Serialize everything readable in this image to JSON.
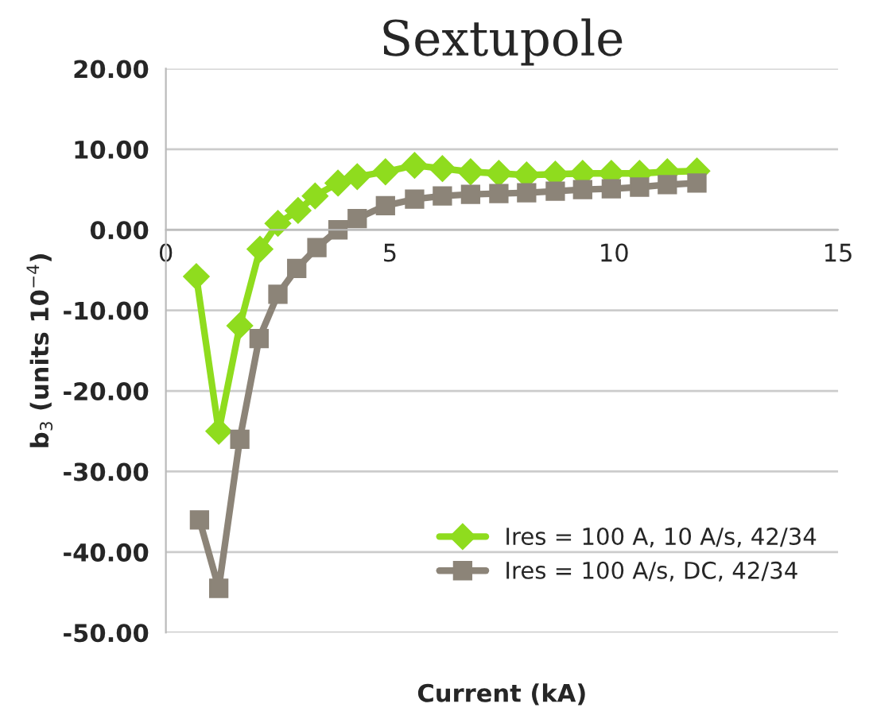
{
  "chart_data": {
    "type": "line",
    "title": "Sextupole",
    "xlabel": "Current (kA)",
    "ylabel": "b$_{3}$ (units 10$^{−4}$)",
    "xlim": [
      0,
      15
    ],
    "xticks": [
      0,
      5,
      10,
      15
    ],
    "ylim": [
      -50,
      20
    ],
    "yticks": [
      {
        "value": -50,
        "label": "-50.00"
      },
      {
        "value": -40,
        "label": "-40.00"
      },
      {
        "value": -30,
        "label": "-30.00"
      },
      {
        "value": -20,
        "label": "-20.00"
      },
      {
        "value": -10,
        "label": "-10.00"
      },
      {
        "value": 0,
        "label": "0.00"
      },
      {
        "value": 10,
        "label": "10.00"
      },
      {
        "value": 20,
        "label": "20.00"
      }
    ],
    "grid": "y",
    "legend": "bottom right",
    "series": [
      {
        "name": "Ires = 100 A, 10 A/s, 42/34",
        "color": "#8fdc1e",
        "marker": "diamond",
        "x": [
          0.68,
          1.18,
          1.65,
          2.1,
          2.5,
          2.95,
          3.33,
          3.84,
          4.27,
          4.9,
          5.55,
          6.17,
          6.8,
          7.43,
          8.05,
          8.69,
          9.3,
          9.94,
          10.57,
          11.19,
          11.85
        ],
        "values": [
          -5.8,
          -25,
          -11.9,
          -2.4,
          0.8,
          2.4,
          4.2,
          5.8,
          6.6,
          7.2,
          8.0,
          7.6,
          7.2,
          7.0,
          6.8,
          6.9,
          7.0,
          7.0,
          7.0,
          7.2,
          7.3
        ]
      },
      {
        "name": "Ires = 100 A/s, DC, 42/34",
        "color": "#8c8478",
        "marker": "square",
        "x": [
          0.75,
          1.18,
          1.65,
          2.08,
          2.5,
          2.92,
          3.37,
          3.84,
          4.27,
          4.9,
          5.55,
          6.17,
          6.8,
          7.43,
          8.05,
          8.69,
          9.3,
          9.94,
          10.57,
          11.19,
          11.85
        ],
        "values": [
          -36,
          -44.5,
          -26,
          -13.5,
          -8,
          -4.8,
          -2.2,
          0.0,
          1.4,
          3.0,
          3.8,
          4.2,
          4.4,
          4.5,
          4.6,
          4.8,
          5.0,
          5.1,
          5.3,
          5.6,
          5.8
        ]
      }
    ]
  }
}
